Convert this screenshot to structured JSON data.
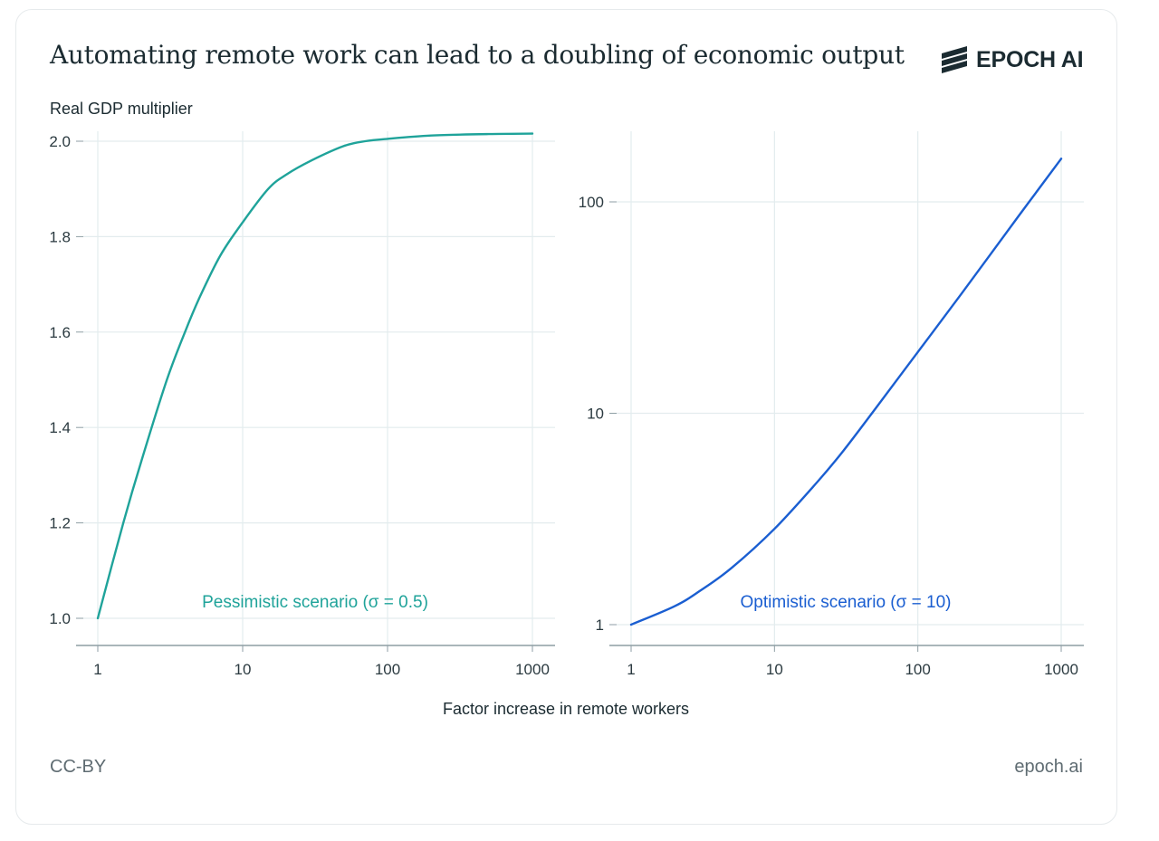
{
  "title": "Automating remote work can lead to a doubling of economic output",
  "logo": {
    "text": "EPOCH AI",
    "icon": "epoch-stripes-icon"
  },
  "y_axis_label": "Real GDP multiplier",
  "x_axis_label": "Factor increase in remote workers",
  "footer": {
    "license": "CC-BY",
    "site": "epoch.ai"
  },
  "colors": {
    "pessimistic": "#1fa39a",
    "optimistic": "#1a5ed1",
    "text": "#1b2b31",
    "grid": "#e3ecee",
    "axis": "#8e9ea4"
  },
  "chart_data": [
    {
      "type": "line",
      "x_scale": "log",
      "y_scale": "linear",
      "xlim": [
        1,
        1000
      ],
      "ylim": [
        0.95,
        2.02
      ],
      "x_ticks": [
        1,
        10,
        100,
        1000
      ],
      "x_tick_labels": [
        "1",
        "10",
        "100",
        "1000"
      ],
      "y_ticks": [
        1.0,
        1.2,
        1.4,
        1.6,
        1.8,
        2.0
      ],
      "y_tick_labels": [
        "1.0",
        "1.2",
        "1.4",
        "1.6",
        "1.8",
        "2.0"
      ],
      "grid": true,
      "annotation": "Pessimistic scenario (σ = 0.5)",
      "series": [
        {
          "color": "#1fa39a",
          "x": [
            1,
            1.5,
            2,
            3,
            4,
            5,
            7,
            10,
            15,
            20,
            30,
            50,
            70,
            100,
            200,
            500,
            1000
          ],
          "y": [
            1.0,
            1.2,
            1.33,
            1.5,
            1.6,
            1.67,
            1.76,
            1.83,
            1.9,
            1.93,
            1.96,
            1.99,
            2.0,
            2.005,
            2.012,
            2.015,
            2.016
          ]
        }
      ]
    },
    {
      "type": "line",
      "x_scale": "log",
      "y_scale": "log",
      "xlim": [
        1,
        1000
      ],
      "ylim": [
        0.9,
        210
      ],
      "x_ticks": [
        1,
        10,
        100,
        1000
      ],
      "x_tick_labels": [
        "1",
        "10",
        "100",
        "1000"
      ],
      "y_ticks": [
        1,
        10,
        100
      ],
      "y_tick_labels": [
        "1",
        "10",
        "100"
      ],
      "grid": true,
      "annotation": "Optimistic scenario (σ = 10)",
      "series": [
        {
          "color": "#1a5ed1",
          "x": [
            1,
            2,
            3,
            5,
            10,
            20,
            30,
            50,
            100,
            200,
            500,
            1000
          ],
          "y": [
            1.0,
            1.22,
            1.44,
            1.85,
            2.84,
            4.75,
            6.6,
            10.4,
            19.5,
            36.5,
            85,
            160
          ]
        }
      ]
    }
  ]
}
